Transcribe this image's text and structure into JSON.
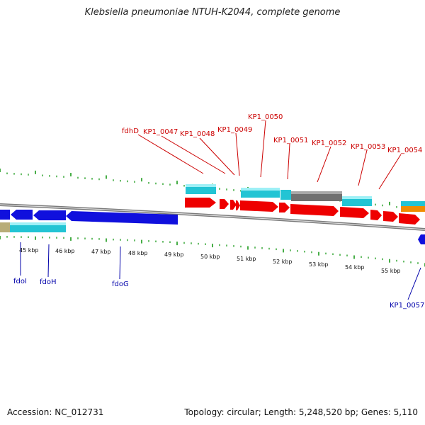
{
  "title": "Klebsiella pneumoniae NTUH-K2044, complete genome",
  "footer": {
    "accession": "Accession: NC_012731",
    "stats": "Topology: circular; Length: 5,248,520 bp; Genes: 5,110"
  },
  "colors": {
    "forward_gene": "#ee0000",
    "reverse_gene": "#1010dd",
    "domain_cyan": "#22c4d4",
    "domain_gray": "#707070",
    "domain_orange": "#f08c00",
    "domain_khaki": "#b8ad78",
    "backbone": "#7a7a7a",
    "tick_green": "#1a9a1a",
    "label_red": "#cc0000",
    "label_blue": "#0000aa"
  },
  "axis": {
    "kbp_labels": [
      "45 kbp",
      "46 kbp",
      "47 kbp",
      "48 kbp",
      "49 kbp",
      "50 kbp",
      "51 kbp",
      "52 kbp",
      "53 kbp",
      "54 kbp",
      "55 kbp"
    ]
  },
  "forward_labels": [
    "fdhD",
    "KP1_0047",
    "KP1_0048",
    "KP1_0049",
    "KP1_0050",
    "KP1_0051",
    "KP1_0052",
    "KP1_0053",
    "KP1_0054"
  ],
  "reverse_labels": [
    "fdoI",
    "fdoH",
    "fdoG",
    "KP1_0057"
  ]
}
